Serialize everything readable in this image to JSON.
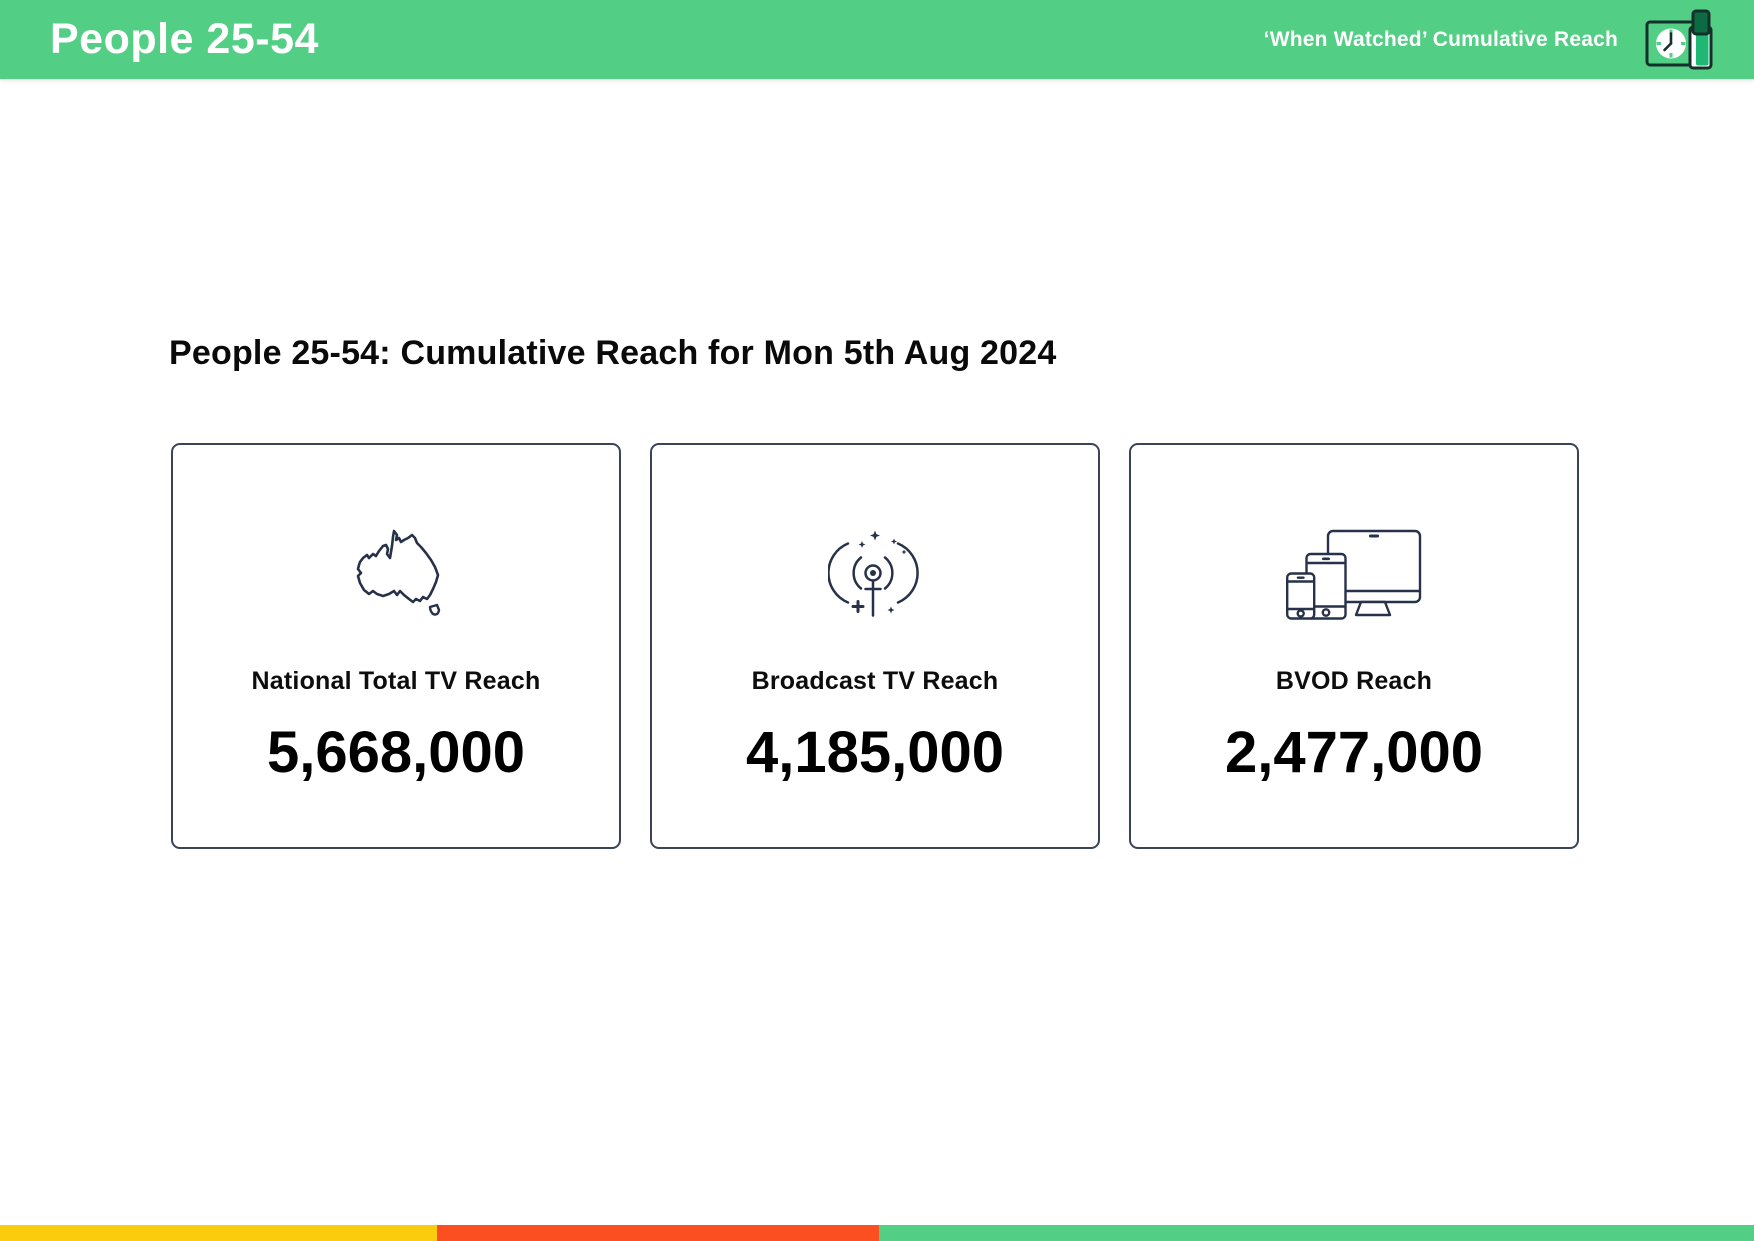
{
  "header": {
    "title": "People 25-54",
    "subtitle": "‘When Watched’ Cumulative Reach",
    "bg_color": "#53CE85",
    "logo_icons": [
      "clock-tv-icon",
      "phone-icon"
    ]
  },
  "main": {
    "heading": "People 25-54: Cumulative Reach for Mon 5th Aug 2024",
    "cards": [
      {
        "icon": "australia-map-icon",
        "label": "National Total TV Reach",
        "value": "5,668,000"
      },
      {
        "icon": "broadcast-signal-icon",
        "label": "Broadcast TV Reach",
        "value": "4,185,000"
      },
      {
        "icon": "multi-device-icon",
        "label": "BVOD Reach",
        "value": "2,477,000"
      }
    ]
  },
  "footer_bar": {
    "segments": [
      {
        "name": "yellow-segment",
        "color": "#FACC0D",
        "width_pct": "24.9"
      },
      {
        "name": "red-segment",
        "color": "#FB4F22",
        "width_pct": "25.2"
      },
      {
        "name": "green-segment",
        "color": "#53CE85",
        "width_pct": "49.9"
      }
    ]
  },
  "colors": {
    "header_green": "#53CE85",
    "icon_navy": "#273149",
    "card_border": "#3A4459",
    "logo_dark": "#14302A",
    "logo_bright_green": "#1FB873",
    "logo_deep_green": "#0D6B43"
  }
}
